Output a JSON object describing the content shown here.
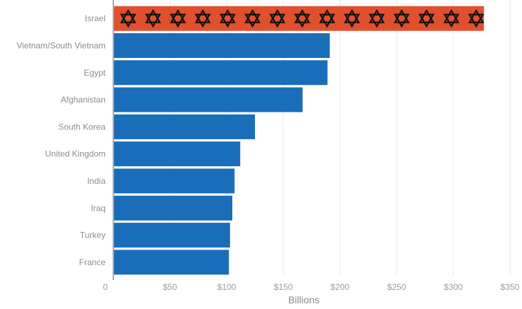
{
  "chart_data": {
    "type": "bar",
    "orientation": "horizontal",
    "categories": [
      "Israel",
      "Vietnam/South Vietnam",
      "Egypt",
      "Afghanistan",
      "South Korea",
      "United Kingdom",
      "India",
      "Iraq",
      "Turkey",
      "France"
    ],
    "values": [
      327,
      191,
      189,
      167,
      125,
      112,
      107,
      105,
      103,
      102
    ],
    "highlight": {
      "category": "Israel",
      "color": "#e1502e",
      "pattern_icon": "star-of-david-icon"
    },
    "bar_color": "#1a6db8",
    "xlabel": "Billions",
    "xlim": [
      0,
      350
    ],
    "xticks": [
      0,
      50,
      100,
      150,
      200,
      250,
      300,
      350
    ],
    "xtick_labels": [
      "0",
      "$50",
      "$100",
      "$150",
      "$200",
      "$250",
      "$300",
      "$350"
    ],
    "grid": true,
    "legend": "none"
  }
}
